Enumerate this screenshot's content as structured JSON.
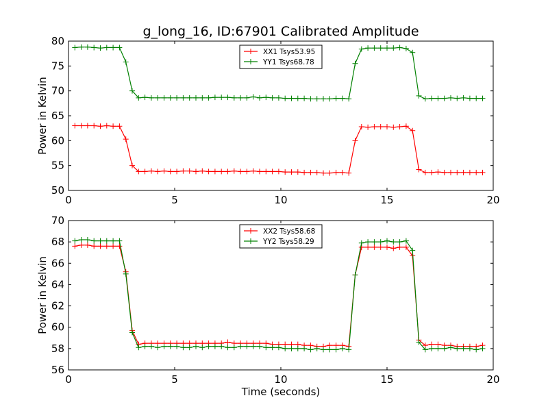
{
  "title": "g_long_16, ID:67901 Calibrated Amplitude",
  "colors": {
    "xx": "#ff0000",
    "yy": "#008000",
    "axis": "#000000"
  },
  "chart_data": [
    {
      "type": "line",
      "xlabel": "",
      "ylabel": "Power in Kelvin",
      "xlim": [
        0,
        20
      ],
      "ylim": [
        50,
        80
      ],
      "xticks": [
        0,
        5,
        10,
        15,
        20
      ],
      "yticks": [
        50,
        55,
        60,
        65,
        70,
        75,
        80
      ],
      "grid": false,
      "legend_position": "top-center",
      "marker": "+",
      "x": [
        0.3,
        0.6,
        0.9,
        1.2,
        1.5,
        1.8,
        2.1,
        2.4,
        2.7,
        3.0,
        3.3,
        3.6,
        3.9,
        4.2,
        4.5,
        4.8,
        5.1,
        5.4,
        5.7,
        6.0,
        6.3,
        6.6,
        6.9,
        7.2,
        7.5,
        7.8,
        8.1,
        8.4,
        8.7,
        9.0,
        9.3,
        9.6,
        9.9,
        10.2,
        10.5,
        10.8,
        11.1,
        11.4,
        11.7,
        12.0,
        12.3,
        12.6,
        12.9,
        13.2,
        13.5,
        13.8,
        14.1,
        14.4,
        14.7,
        15.0,
        15.3,
        15.6,
        15.9,
        16.2,
        16.5,
        16.8,
        17.1,
        17.4,
        17.7,
        18.0,
        18.3,
        18.6,
        18.9,
        19.2,
        19.5
      ],
      "series": [
        {
          "name": "XX1 Tsys53.95",
          "color": "#ff0000",
          "values": [
            63.0,
            63.0,
            63.0,
            63.0,
            62.9,
            63.0,
            62.9,
            62.9,
            60.3,
            55.0,
            53.8,
            53.8,
            53.9,
            53.8,
            53.9,
            53.8,
            53.8,
            53.9,
            53.9,
            53.8,
            53.9,
            53.8,
            53.8,
            53.8,
            53.8,
            53.9,
            53.8,
            53.8,
            53.9,
            53.8,
            53.8,
            53.8,
            53.8,
            53.7,
            53.7,
            53.7,
            53.6,
            53.6,
            53.6,
            53.5,
            53.5,
            53.6,
            53.6,
            53.5,
            60.0,
            62.8,
            62.7,
            62.8,
            62.8,
            62.8,
            62.7,
            62.8,
            62.9,
            62.0,
            54.2,
            53.6,
            53.6,
            53.7,
            53.6,
            53.6,
            53.6,
            53.6,
            53.6,
            53.6,
            53.6
          ]
        },
        {
          "name": "YY1 Tsys68.78",
          "color": "#008000",
          "values": [
            78.7,
            78.8,
            78.8,
            78.7,
            78.6,
            78.7,
            78.7,
            78.7,
            75.8,
            70.0,
            68.6,
            68.7,
            68.6,
            68.6,
            68.6,
            68.6,
            68.6,
            68.6,
            68.6,
            68.6,
            68.6,
            68.6,
            68.7,
            68.7,
            68.7,
            68.6,
            68.6,
            68.6,
            68.8,
            68.6,
            68.7,
            68.6,
            68.6,
            68.5,
            68.5,
            68.5,
            68.5,
            68.4,
            68.4,
            68.4,
            68.4,
            68.5,
            68.5,
            68.4,
            75.5,
            78.4,
            78.6,
            78.6,
            78.6,
            78.6,
            78.6,
            78.7,
            78.5,
            77.7,
            69.0,
            68.4,
            68.5,
            68.5,
            68.5,
            68.6,
            68.5,
            68.6,
            68.5,
            68.5,
            68.5
          ]
        }
      ]
    },
    {
      "type": "line",
      "xlabel": "Time (seconds)",
      "ylabel": "Power in Kelvin",
      "xlim": [
        0,
        20
      ],
      "ylim": [
        56,
        70
      ],
      "xticks": [
        0,
        5,
        10,
        15,
        20
      ],
      "yticks": [
        56,
        58,
        60,
        62,
        64,
        66,
        68,
        70
      ],
      "grid": false,
      "legend_position": "top-center",
      "marker": "+",
      "x": [
        0.3,
        0.6,
        0.9,
        1.2,
        1.5,
        1.8,
        2.1,
        2.4,
        2.7,
        3.0,
        3.3,
        3.6,
        3.9,
        4.2,
        4.5,
        4.8,
        5.1,
        5.4,
        5.7,
        6.0,
        6.3,
        6.6,
        6.9,
        7.2,
        7.5,
        7.8,
        8.1,
        8.4,
        8.7,
        9.0,
        9.3,
        9.6,
        9.9,
        10.2,
        10.5,
        10.8,
        11.1,
        11.4,
        11.7,
        12.0,
        12.3,
        12.6,
        12.9,
        13.2,
        13.5,
        13.8,
        14.1,
        14.4,
        14.7,
        15.0,
        15.3,
        15.6,
        15.9,
        16.2,
        16.5,
        16.8,
        17.1,
        17.4,
        17.7,
        18.0,
        18.3,
        18.6,
        18.9,
        19.2,
        19.5
      ],
      "series": [
        {
          "name": "XX2 Tsys58.68",
          "color": "#ff0000",
          "values": [
            67.6,
            67.7,
            67.7,
            67.6,
            67.6,
            67.6,
            67.6,
            67.6,
            65.2,
            59.7,
            58.4,
            58.5,
            58.5,
            58.5,
            58.5,
            58.5,
            58.5,
            58.5,
            58.5,
            58.5,
            58.5,
            58.5,
            58.5,
            58.5,
            58.6,
            58.5,
            58.5,
            58.5,
            58.5,
            58.5,
            58.5,
            58.4,
            58.4,
            58.4,
            58.4,
            58.4,
            58.3,
            58.3,
            58.2,
            58.2,
            58.3,
            58.3,
            58.3,
            58.2,
            64.9,
            67.5,
            67.5,
            67.5,
            67.5,
            67.5,
            67.4,
            67.5,
            67.5,
            66.7,
            58.8,
            58.3,
            58.4,
            58.4,
            58.3,
            58.3,
            58.2,
            58.2,
            58.2,
            58.2,
            58.3
          ]
        },
        {
          "name": "YY2 Tsys58.29",
          "color": "#008000",
          "values": [
            68.1,
            68.2,
            68.2,
            68.1,
            68.1,
            68.1,
            68.1,
            68.1,
            65.0,
            59.5,
            58.1,
            58.2,
            58.2,
            58.1,
            58.2,
            58.2,
            58.2,
            58.1,
            58.1,
            58.2,
            58.1,
            58.2,
            58.2,
            58.2,
            58.1,
            58.1,
            58.2,
            58.2,
            58.2,
            58.2,
            58.1,
            58.1,
            58.1,
            58.0,
            58.0,
            58.0,
            58.0,
            57.9,
            58.0,
            57.9,
            57.9,
            57.9,
            58.0,
            57.9,
            64.9,
            67.9,
            68.0,
            68.0,
            68.0,
            68.1,
            68.0,
            68.0,
            68.1,
            67.2,
            58.6,
            57.9,
            58.0,
            58.0,
            58.0,
            58.1,
            58.0,
            58.0,
            58.0,
            57.9,
            58.0
          ]
        }
      ]
    }
  ]
}
